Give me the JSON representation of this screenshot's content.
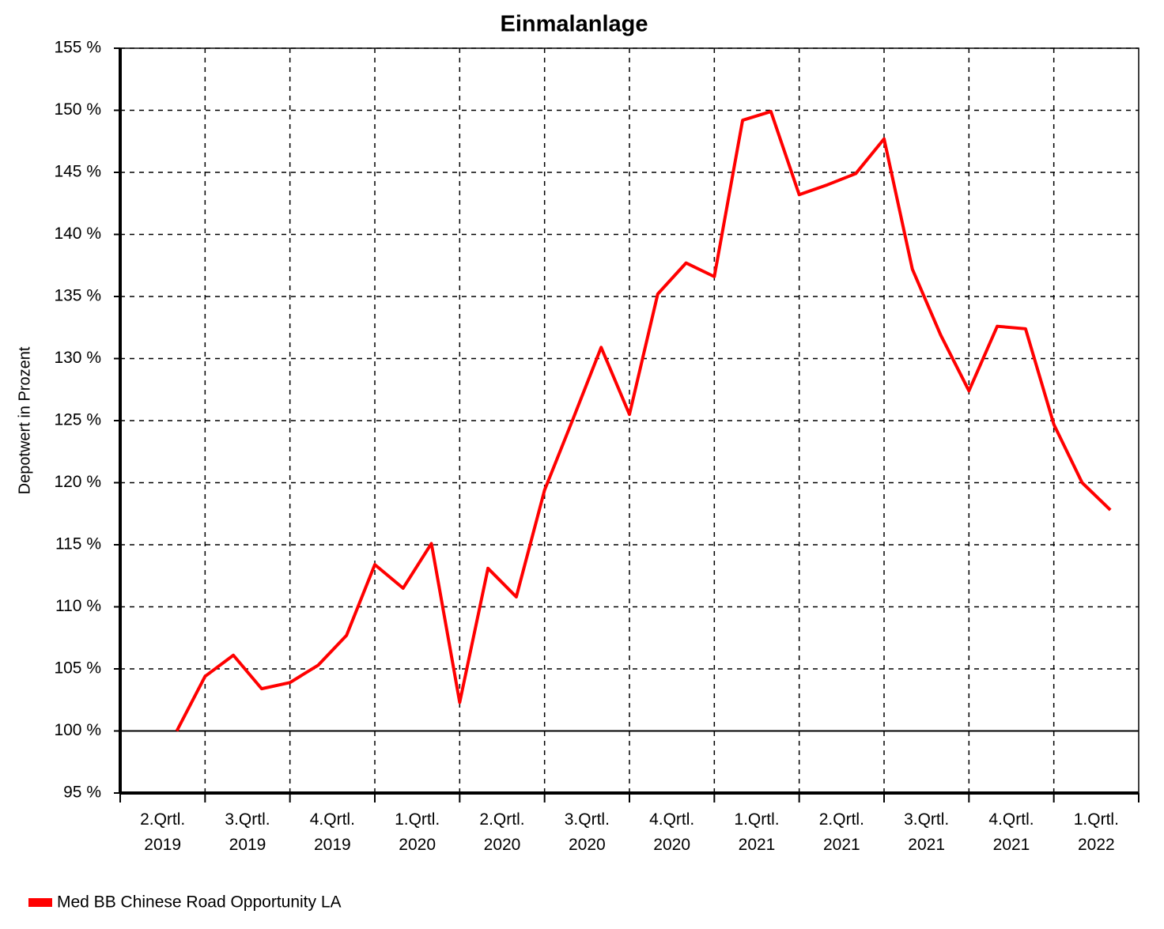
{
  "chart_data": {
    "type": "line",
    "title": "Einmalanlage",
    "y_label": "Depotwert in Prozent",
    "categories": [
      [
        "2.Qrtl.",
        "2019"
      ],
      [
        "3.Qrtl.",
        "2019"
      ],
      [
        "4.Qrtl.",
        "2019"
      ],
      [
        "1.Qrtl.",
        "2020"
      ],
      [
        "2.Qrtl.",
        "2020"
      ],
      [
        "3.Qrtl.",
        "2020"
      ],
      [
        "4.Qrtl.",
        "2020"
      ],
      [
        "1.Qrtl.",
        "2021"
      ],
      [
        "2.Qrtl.",
        "2021"
      ],
      [
        "3.Qrtl.",
        "2021"
      ],
      [
        "4.Qrtl.",
        "2021"
      ],
      [
        "1.Qrtl.",
        "2022"
      ]
    ],
    "xlim": [
      0,
      36
    ],
    "x": [
      2,
      3,
      4,
      5,
      6,
      7,
      8,
      9,
      10,
      11,
      12,
      13,
      14,
      15,
      16,
      17,
      18,
      19,
      20,
      21,
      22,
      23,
      24,
      25,
      26,
      27,
      28,
      29,
      30,
      31,
      32,
      33,
      34,
      35
    ],
    "series": [
      {
        "name": "Med BB Chinese Road Opportunity LA",
        "color": "#ff0000",
        "values": [
          100.0,
          104.4,
          106.1,
          103.4,
          103.9,
          105.3,
          107.7,
          113.4,
          111.5,
          115.1,
          102.3,
          113.1,
          110.8,
          119.4,
          125.1,
          130.9,
          125.5,
          135.2,
          137.7,
          136.6,
          149.2,
          149.9,
          143.2,
          144.0,
          144.9,
          147.7,
          137.2,
          131.9,
          127.4,
          132.6,
          132.4,
          124.7,
          120.0,
          117.8
        ]
      }
    ],
    "ylim": [
      95,
      155
    ],
    "yticks": [
      {
        "value": 95,
        "label": "95 %"
      },
      {
        "value": 100,
        "label": "100 %"
      },
      {
        "value": 105,
        "label": "105 %"
      },
      {
        "value": 110,
        "label": "110 %"
      },
      {
        "value": 115,
        "label": "115 %"
      },
      {
        "value": 120,
        "label": "120 %"
      },
      {
        "value": 125,
        "label": "125 %"
      },
      {
        "value": 130,
        "label": "130 %"
      },
      {
        "value": 135,
        "label": "135 %"
      },
      {
        "value": 140,
        "label": "140 %"
      },
      {
        "value": 145,
        "label": "145 %"
      },
      {
        "value": 150,
        "label": "150 %"
      },
      {
        "value": 155,
        "label": "155 %"
      }
    ],
    "baseline": 100,
    "grid": true,
    "legend": "bottom-left"
  }
}
